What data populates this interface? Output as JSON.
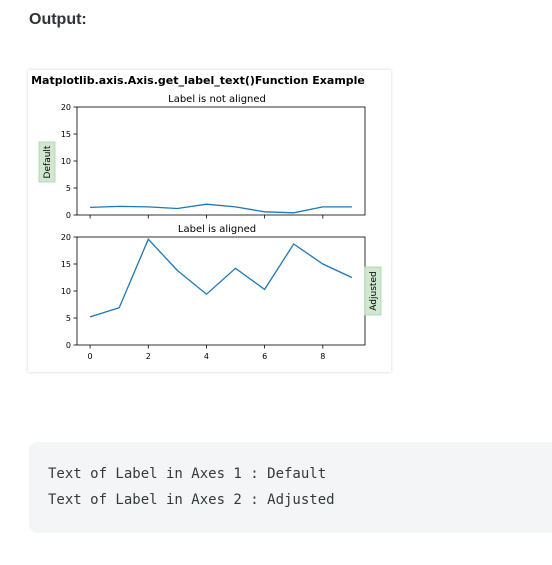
{
  "page": {
    "heading": "Output:"
  },
  "figure": {
    "suptitle": "Matplotlib.axis.Axis.get_label_text()Function Example"
  },
  "chart_data": [
    {
      "type": "line",
      "title": "Label is not aligned",
      "ylabel": "Default",
      "ylabel_position": "left",
      "ylim": [
        0,
        20
      ],
      "xlim": [
        -0.45,
        9.45
      ],
      "yticks": [
        0,
        5,
        10,
        15,
        20
      ],
      "xticks": [
        0,
        2,
        4,
        6,
        8
      ],
      "show_xtick_labels": false,
      "grid": false,
      "series": [
        {
          "color": "#1f77b4",
          "x": [
            0,
            1,
            2,
            3,
            4,
            5,
            6,
            7,
            8,
            9
          ],
          "y": [
            1.4,
            1.6,
            1.5,
            1.2,
            2.0,
            1.5,
            0.6,
            0.4,
            1.5,
            1.5
          ]
        }
      ]
    },
    {
      "type": "line",
      "title": "Label is aligned",
      "ylabel": "Adjusted",
      "ylabel_position": "right",
      "ylim": [
        0,
        20
      ],
      "xlim": [
        -0.45,
        9.45
      ],
      "yticks": [
        0,
        5,
        10,
        15,
        20
      ],
      "xticks": [
        0,
        2,
        4,
        6,
        8
      ],
      "show_xtick_labels": true,
      "grid": false,
      "series": [
        {
          "color": "#1f77b4",
          "x": [
            0,
            1,
            2,
            3,
            4,
            5,
            6,
            7,
            8,
            9
          ],
          "y": [
            5.2,
            6.9,
            19.6,
            13.8,
            9.4,
            14.2,
            10.3,
            18.7,
            15.0,
            12.5
          ]
        }
      ]
    }
  ],
  "code_output": {
    "lines": [
      "Text of Label in Axes 1 : Default",
      "Text of Label in Axes 2 : Adjusted"
    ]
  },
  "colors": {
    "line": "#1f77b4",
    "label_box_fill": "#cfe8cf",
    "label_box_border": "#a9d3a9",
    "code_bg": "#f4f5f6"
  }
}
